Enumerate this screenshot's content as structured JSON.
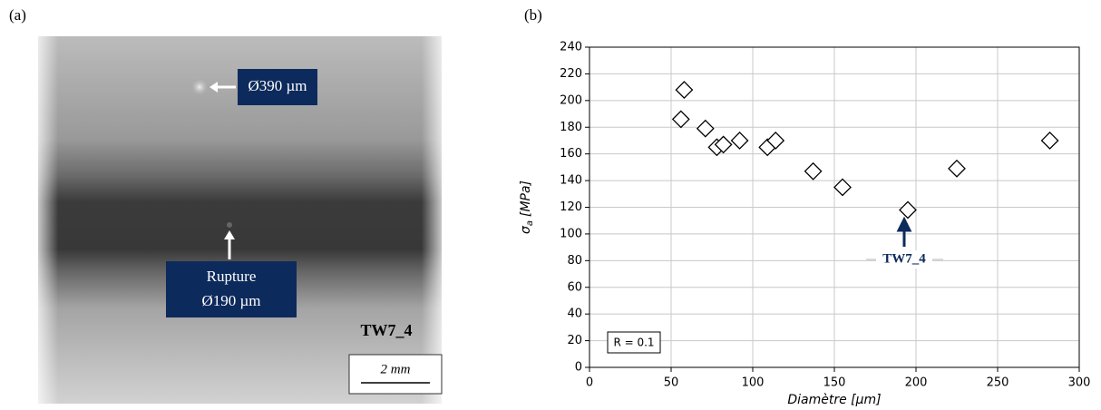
{
  "panel_a": {
    "label": "(a)",
    "hole_label": "Ø390 µm",
    "rupture_label": [
      "Rupture",
      "Ø190 µm"
    ],
    "specimen": "TW7_4",
    "scale_bar": "2 mm"
  },
  "chart_data": {
    "type": "scatter",
    "panel_label": "(b)",
    "xlabel": "Diamètre [µm]",
    "ylabel": [
      "σ",
      "a",
      "[MPa]"
    ],
    "x": [
      56,
      58,
      71,
      78,
      82,
      92,
      109,
      114,
      137,
      155,
      195,
      225,
      282
    ],
    "values": [
      186,
      208,
      179,
      165,
      167,
      170,
      165,
      170,
      147,
      135,
      118,
      149,
      170
    ],
    "color": "#000000",
    "marker": "diamond",
    "xlim": [
      0,
      300
    ],
    "xticks": [
      0,
      50,
      100,
      150,
      200,
      250,
      300
    ],
    "ylim": [
      0,
      240
    ],
    "yticks": [
      0,
      20,
      40,
      60,
      80,
      100,
      120,
      140,
      160,
      180,
      200,
      220,
      240
    ],
    "grid": true,
    "annotation": "TW7_4",
    "note": "R = 0.1"
  }
}
